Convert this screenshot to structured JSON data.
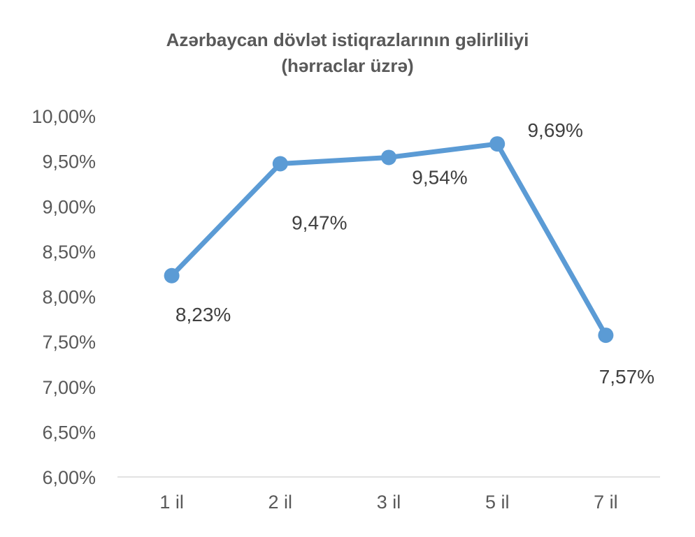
{
  "chart_data": {
    "type": "line",
    "title": "Azərbaycan dövlət istiqrazlarının gəlirliliyi",
    "subtitle": "(hərraclar üzrə)",
    "categories": [
      "1 il",
      "2 il",
      "3 il",
      "5 il",
      "7 il"
    ],
    "series": [
      {
        "values": [
          8.23,
          9.47,
          9.54,
          9.69,
          7.57
        ],
        "labels": [
          "8,23%",
          "9,47%",
          "9,54%",
          "9,69%",
          "7,57%"
        ],
        "color": "#5B9BD5"
      }
    ],
    "ylim": [
      6.0,
      10.0
    ],
    "yticks": [
      "6,00%",
      "6,50%",
      "7,00%",
      "7,50%",
      "8,00%",
      "8,50%",
      "9,00%",
      "9,50%",
      "10,00%"
    ],
    "grid": false,
    "legend": "none",
    "axis_color": "#D9D9D9",
    "text_color": "#595959"
  }
}
